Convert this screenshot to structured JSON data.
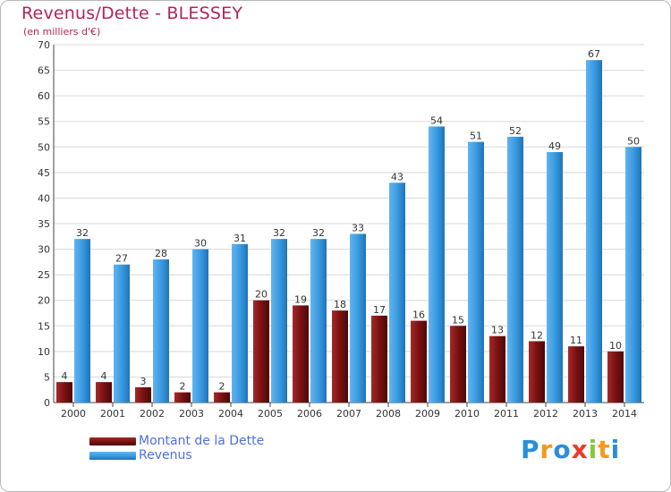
{
  "header": {
    "title": "Revenus/Dette - BLESSEY",
    "subtitle": "(en milliers d'€)"
  },
  "colors": {
    "title": "#b3245b",
    "dette": "#7a1111",
    "revenus": "#3a9be0",
    "grid": "#d8d8d8",
    "axis_text": "#333333",
    "legend_text": "#4f6fe0"
  },
  "chart_data": {
    "type": "bar",
    "categories": [
      "2000",
      "2001",
      "2002",
      "2003",
      "2004",
      "2005",
      "2006",
      "2007",
      "2008",
      "2009",
      "2010",
      "2011",
      "2012",
      "2013",
      "2014"
    ],
    "series": [
      {
        "name": "Montant de la Dette",
        "values": [
          4,
          4,
          3,
          2,
          2,
          20,
          19,
          18,
          17,
          16,
          15,
          13,
          12,
          11,
          10
        ]
      },
      {
        "name": "Revenus",
        "values": [
          32,
          27,
          28,
          30,
          31,
          32,
          32,
          33,
          43,
          54,
          51,
          52,
          49,
          67,
          50
        ]
      }
    ],
    "title": "Revenus/Dette - BLESSEY",
    "ylabel": "(en milliers d'€)",
    "ylim": [
      0,
      70
    ],
    "yticks": [
      0,
      5,
      10,
      15,
      20,
      25,
      30,
      35,
      40,
      45,
      50,
      55,
      60,
      65,
      70
    ],
    "grid": true,
    "legend": "bottom-left"
  },
  "legend": {
    "items": [
      {
        "label": "Montant de la Dette"
      },
      {
        "label": "Revenus"
      }
    ]
  },
  "logo": {
    "letters": [
      "P",
      "r",
      "o",
      "x",
      "i",
      "t",
      "i"
    ],
    "colors": [
      "#2b8fd8",
      "#f29a1f",
      "#2b8fd8",
      "#e83b2a",
      "#8cc63f",
      "#f29a1f",
      "#2b8fd8"
    ]
  }
}
